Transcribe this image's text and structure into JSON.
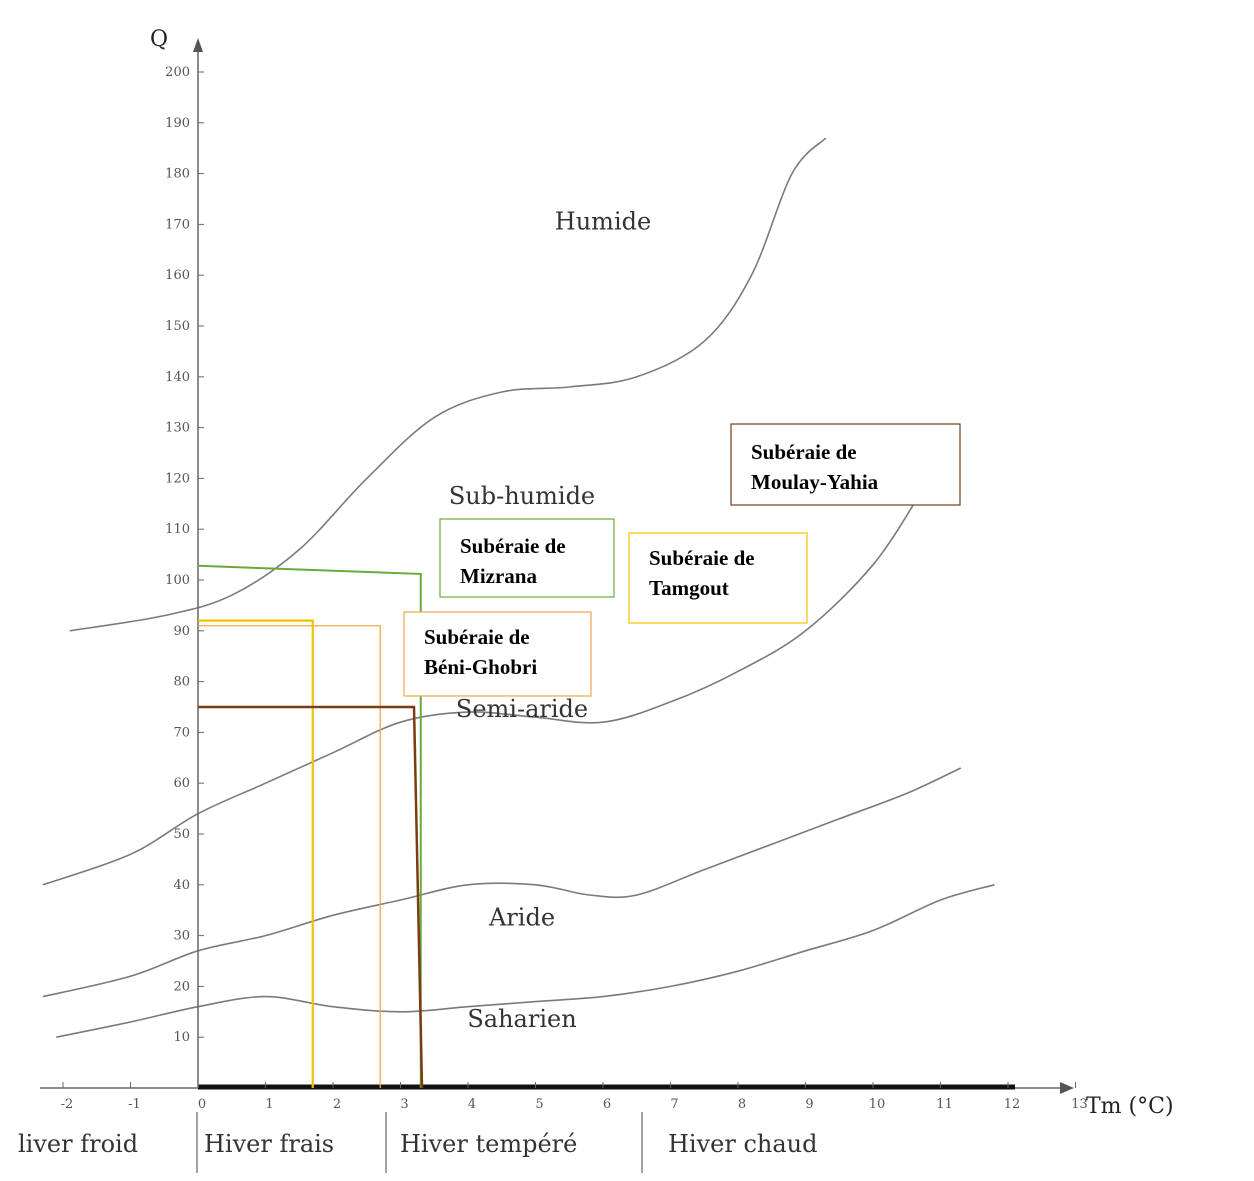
{
  "chart_data": {
    "type": "line",
    "title": "",
    "xlabel": "Tm (°C)",
    "ylabel": "Q",
    "xlim": [
      -2.2,
      13
    ],
    "ylim": [
      0,
      205
    ],
    "x_ticks": [
      -2,
      -1,
      0,
      1,
      2,
      3,
      4,
      5,
      6,
      7,
      8,
      9,
      10,
      11,
      12,
      13
    ],
    "y_ticks": [
      10,
      20,
      30,
      40,
      50,
      60,
      70,
      80,
      90,
      100,
      110,
      120,
      130,
      140,
      150,
      160,
      170,
      180,
      190,
      200
    ],
    "boundary_color": "#7a7a7a",
    "boundaries": [
      {
        "x": [
          -1.9,
          -0.5,
          0.5,
          1.5,
          2.5,
          3.5,
          4.5,
          5.5,
          6.5,
          7.5,
          8.2,
          8.8,
          9.3
        ],
        "y": [
          90,
          93,
          97,
          106,
          120,
          132,
          137,
          138,
          140,
          147,
          160,
          180,
          187
        ]
      },
      {
        "x": [
          -2.3,
          -1,
          0,
          1,
          2,
          3,
          4,
          5,
          6,
          7,
          8,
          9,
          10,
          10.7
        ],
        "y": [
          40,
          46,
          54,
          60,
          66,
          72,
          74,
          73,
          72,
          76,
          82,
          90,
          103,
          117
        ]
      },
      {
        "x": [
          -2.3,
          -1,
          0,
          1,
          2,
          3,
          4,
          5,
          5.8,
          6.5,
          7.5,
          8.5,
          9.5,
          10.5,
          11.3
        ],
        "y": [
          18,
          22,
          27,
          30,
          34,
          37,
          40,
          40,
          38,
          38,
          43,
          48,
          53,
          58,
          63
        ]
      },
      {
        "x": [
          -2.1,
          -1,
          0,
          1,
          2,
          3,
          4,
          5,
          6,
          7,
          8,
          9,
          10,
          11,
          11.8
        ],
        "y": [
          10,
          13,
          16,
          18,
          16,
          15,
          16,
          17,
          18,
          20,
          23,
          27,
          31,
          37,
          40
        ]
      }
    ],
    "zones": [
      {
        "label": "Humide",
        "x": 6.0,
        "y": 169
      },
      {
        "label": "Sub-humide",
        "x": 4.8,
        "y": 115
      },
      {
        "label": "Semi-aride",
        "x": 4.8,
        "y": 73
      },
      {
        "label": "Aride",
        "x": 4.8,
        "y": 32
      },
      {
        "label": "Saharien",
        "x": 4.8,
        "y": 12
      }
    ],
    "stations": [
      {
        "name": "Subéraie de Mizrana",
        "lines": [
          "Subéraie de",
          "Mizrana"
        ],
        "color": "#6aaa3a",
        "tm": 3.3,
        "q": 102
      },
      {
        "name": "Subéraie de Béni-Ghobri",
        "lines": [
          "Subéraie de",
          "Béni-Ghobri"
        ],
        "color": "#f0a848",
        "tm": 2.7,
        "q": 91
      },
      {
        "name": "Subéraie de Tamgout",
        "lines": [
          "Subéraie de",
          "Tamgout"
        ],
        "color": "#f2c200",
        "tm": 1.7,
        "q": 92
      },
      {
        "name": "Subéraie de Moulay-Yahia",
        "lines": [
          "Subéraie de",
          "Moulay-Yahia"
        ],
        "color": "#7a3c14",
        "tm": 3.2,
        "q": 75
      }
    ],
    "seasons": [
      {
        "label": "liver froid"
      },
      {
        "label": "Hiver frais"
      },
      {
        "label": "Hiver tempéré"
      },
      {
        "label": "Hiver chaud"
      }
    ]
  }
}
